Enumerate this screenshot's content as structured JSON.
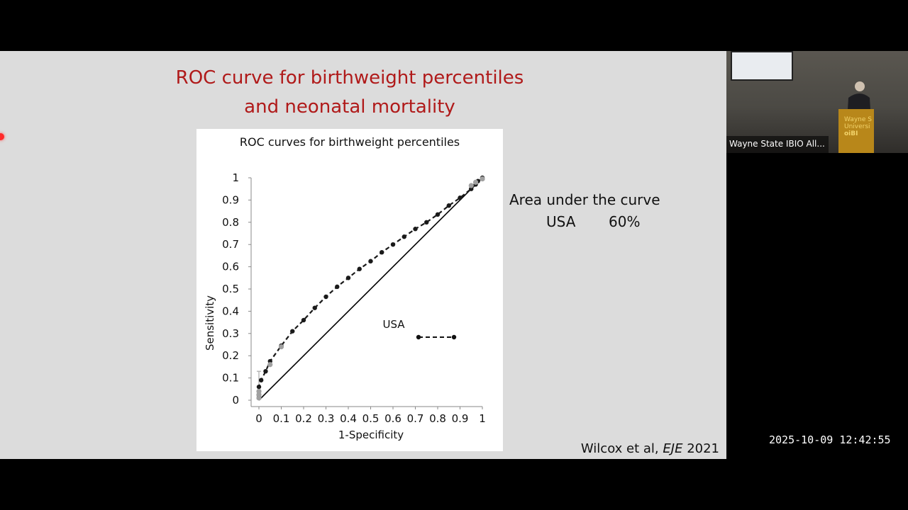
{
  "slide": {
    "title_line1": "ROC curve for birthweight percentiles",
    "title_line2": "and neonatal mortality",
    "auc": {
      "title": "Area under the curve",
      "country": "USA",
      "value": "60%"
    },
    "citation": {
      "authors": "Wilcox et al,",
      "journal": "EJE",
      "year": "2021"
    }
  },
  "camera": {
    "label": "Wayne State IBIO All...",
    "podium_text": "Wayne S\nUniversi",
    "podium_logo": "oiBI"
  },
  "timestamp": "2025-10-09  12:42:55",
  "chart_data": {
    "type": "line",
    "title": "ROC curves for birthweight percentiles",
    "xlabel": "1-Specificity",
    "ylabel": "Sensitivity",
    "xlim": [
      0,
      1
    ],
    "ylim": [
      0,
      1
    ],
    "x_ticks": [
      "0",
      "0.1",
      "0.2",
      "0.3",
      "0.4",
      "0.5",
      "0.6",
      "0.7",
      "0.8",
      "0.9",
      "1"
    ],
    "y_ticks": [
      "0",
      "0.1",
      "0.2",
      "0.3",
      "0.4",
      "0.5",
      "0.6",
      "0.7",
      "0.8",
      "0.9",
      "1"
    ],
    "grid": false,
    "legend": {
      "label": "USA",
      "position": "center-right"
    },
    "colors": {
      "series": "#1a1a1a",
      "reference": "#000000",
      "gray_series": "#a0a0a0"
    },
    "reference_line": [
      [
        0,
        0
      ],
      [
        1,
        1
      ]
    ],
    "series": [
      {
        "name": "USA",
        "style": "dashed-markers",
        "x": [
          0.0,
          0.0,
          0.01,
          0.03,
          0.05,
          0.1,
          0.15,
          0.2,
          0.25,
          0.3,
          0.35,
          0.4,
          0.45,
          0.5,
          0.55,
          0.6,
          0.65,
          0.7,
          0.75,
          0.8,
          0.85,
          0.9,
          0.95,
          0.97,
          0.98,
          1.0
        ],
        "y": [
          0.02,
          0.06,
          0.09,
          0.13,
          0.175,
          0.245,
          0.31,
          0.36,
          0.415,
          0.465,
          0.51,
          0.55,
          0.59,
          0.625,
          0.665,
          0.7,
          0.735,
          0.77,
          0.8,
          0.835,
          0.875,
          0.91,
          0.95,
          0.97,
          0.985,
          1.0
        ]
      }
    ],
    "gray_points": {
      "x": [
        0.0,
        0.0,
        0.0,
        0.05,
        0.1,
        0.95,
        0.97,
        1.0
      ],
      "y": [
        0.01,
        0.025,
        0.04,
        0.16,
        0.24,
        0.965,
        0.98,
        0.995
      ]
    }
  }
}
